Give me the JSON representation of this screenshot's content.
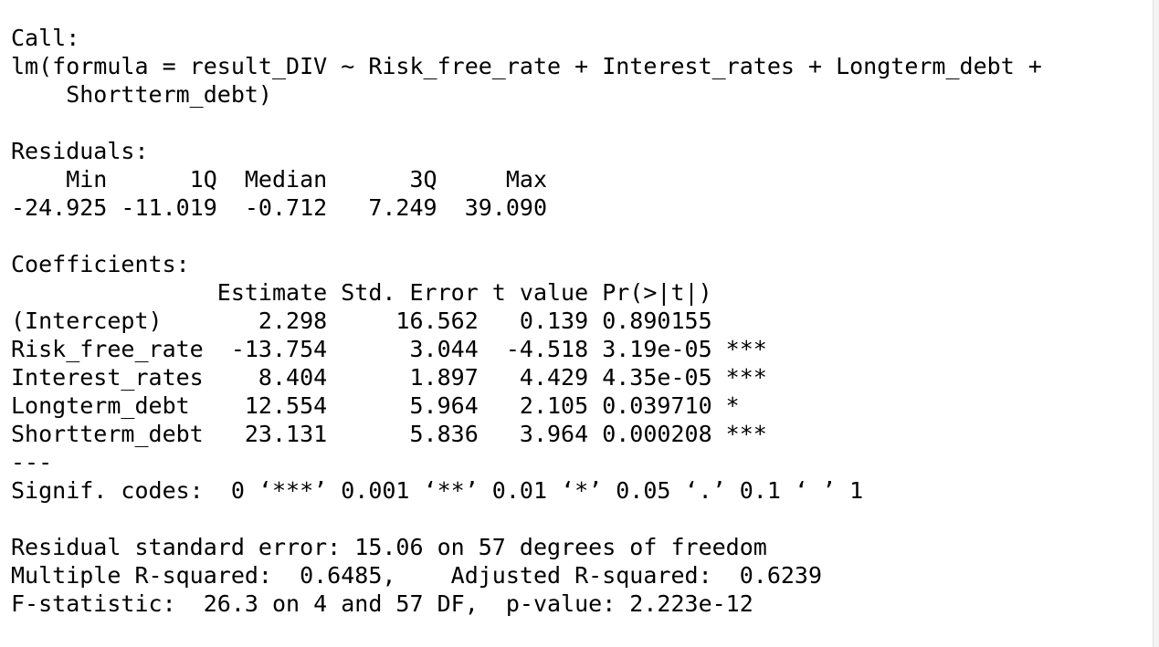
{
  "console": {
    "lines": [
      "Call:",
      "lm(formula = result_DIV ~ Risk_free_rate + Interest_rates + Longterm_debt +",
      "    Shortterm_debt)",
      "",
      "Residuals:",
      "    Min      1Q  Median      3Q     Max ",
      "-24.925 -11.019  -0.712   7.249  39.090 ",
      "",
      "Coefficients:",
      "               Estimate Std. Error t value Pr(>|t|)    ",
      "(Intercept)       2.298     16.562   0.139 0.890155    ",
      "Risk_free_rate  -13.754      3.044  -4.518 3.19e-05 ***",
      "Interest_rates    8.404      1.897   4.429 4.35e-05 ***",
      "Longterm_debt    12.554      5.964   2.105 0.039710 *  ",
      "Shortterm_debt   23.131      5.836   3.964 0.000208 ***",
      "---",
      "Signif. codes:  0 ‘***’ 0.001 ‘**’ 0.01 ‘*’ 0.05 ‘.’ 0.1 ‘ ’ 1",
      "",
      "Residual standard error: 15.06 on 57 degrees of freedom",
      "Multiple R-squared:  0.6485,\tAdjusted R-squared:  0.6239 ",
      "F-statistic:  26.3 on 4 and 57 DF,  p-value: 2.223e-12"
    ]
  }
}
